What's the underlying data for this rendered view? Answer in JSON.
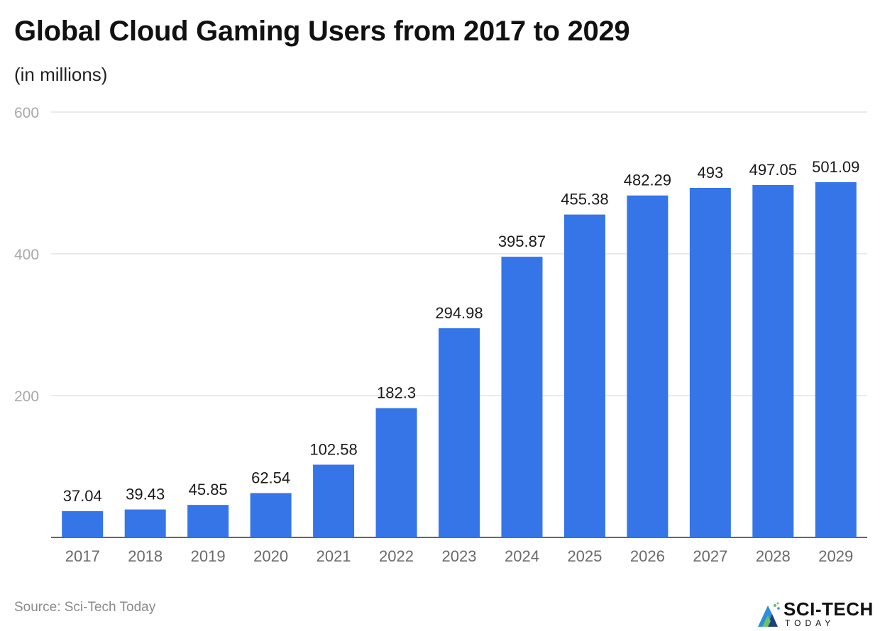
{
  "chart_data": {
    "type": "bar",
    "title": "Global Cloud Gaming Users from 2017 to 2029",
    "subtitle": "(in millions)",
    "categories": [
      "2017",
      "2018",
      "2019",
      "2020",
      "2021",
      "2022",
      "2023",
      "2024",
      "2025",
      "2026",
      "2027",
      "2028",
      "2029"
    ],
    "values": [
      37.04,
      39.43,
      45.85,
      62.54,
      102.58,
      182.3,
      294.98,
      395.87,
      455.38,
      482.29,
      493,
      497.05,
      501.09
    ],
    "value_labels": [
      "37.04",
      "39.43",
      "45.85",
      "62.54",
      "102.58",
      "182.3",
      "294.98",
      "395.87",
      "455.38",
      "482.29",
      "493",
      "497.05",
      "501.09"
    ],
    "y_ticks": [
      200,
      400,
      600
    ],
    "y_tick_labels": [
      "200",
      "400",
      "600"
    ],
    "ylim": [
      0,
      600
    ],
    "xlabel": "",
    "ylabel": "",
    "grid": true,
    "bar_color": "#3575e8"
  },
  "source": "Source: Sci-Tech Today",
  "logo": {
    "name": "SCI-TECH",
    "tagline": "TODAY"
  }
}
